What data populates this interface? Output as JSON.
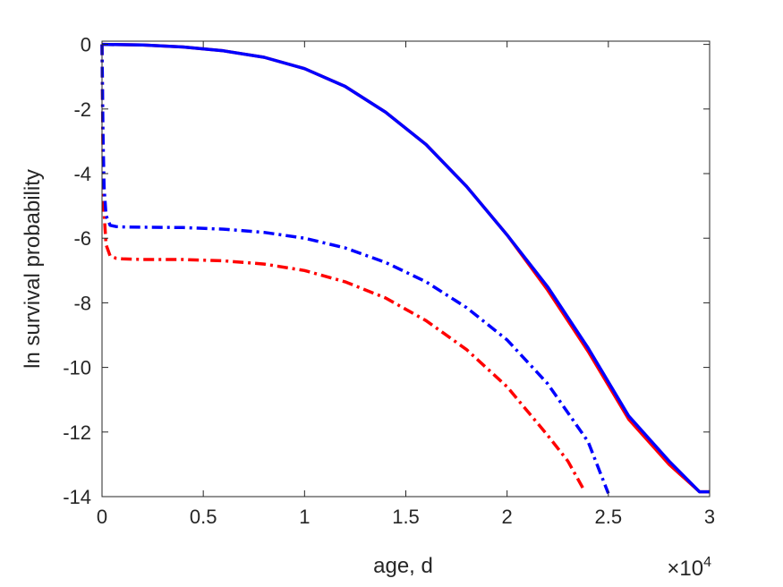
{
  "chart_data": {
    "type": "line",
    "title": "",
    "xlabel": "age, d",
    "ylabel": "ln survival probability",
    "x_exponent_label": {
      "base": "×10",
      "exponent": "4"
    },
    "xlim": [
      0,
      30000
    ],
    "ylim": [
      -14,
      0.1
    ],
    "xticks": [
      0,
      5000,
      10000,
      15000,
      20000,
      25000,
      30000
    ],
    "xtick_labels": [
      "0",
      "0.5",
      "1",
      "1.5",
      "2",
      "2.5",
      "3"
    ],
    "yticks": [
      0,
      -2,
      -4,
      -6,
      -8,
      -10,
      -12,
      -14
    ],
    "ytick_labels": [
      "0",
      "-2",
      "-4",
      "-6",
      "-8",
      "-10",
      "-12",
      "-14"
    ],
    "grid": false,
    "box": true,
    "series": [
      {
        "color": "#ff0000",
        "style": "solid",
        "x": [
          0,
          2000,
          4000,
          6000,
          8000,
          10000,
          12000,
          14000,
          16000,
          18000,
          20000,
          22000,
          24000,
          26000,
          28000,
          29500,
          30000
        ],
        "y": [
          0,
          -0.02,
          -0.08,
          -0.2,
          -0.4,
          -0.75,
          -1.3,
          -2.1,
          -3.1,
          -4.4,
          -5.9,
          -7.6,
          -9.5,
          -11.6,
          -13.0,
          -13.85,
          -13.85
        ]
      },
      {
        "color": "#0000ff",
        "style": "solid",
        "x": [
          0,
          2000,
          4000,
          6000,
          8000,
          10000,
          12000,
          14000,
          16000,
          18000,
          20000,
          22000,
          24000,
          26000,
          28000,
          29500,
          30000
        ],
        "y": [
          0,
          -0.02,
          -0.08,
          -0.2,
          -0.4,
          -0.75,
          -1.3,
          -2.1,
          -3.1,
          -4.4,
          -5.9,
          -7.5,
          -9.4,
          -11.5,
          -12.9,
          -13.85,
          -13.85
        ]
      },
      {
        "color": "#ff0000",
        "style": "dashdot",
        "x": [
          0,
          50,
          100,
          200,
          400,
          700,
          1000,
          2000,
          4000,
          6000,
          8000,
          10000,
          12000,
          14000,
          16000,
          18000,
          20000,
          22000,
          23000,
          23800
        ],
        "y": [
          0,
          -3.5,
          -5.2,
          -6.2,
          -6.55,
          -6.62,
          -6.64,
          -6.66,
          -6.66,
          -6.7,
          -6.8,
          -7.0,
          -7.35,
          -7.85,
          -8.55,
          -9.45,
          -10.6,
          -12.1,
          -12.9,
          -13.8
        ]
      },
      {
        "color": "#0000ff",
        "style": "dashdot",
        "x": [
          0,
          50,
          100,
          200,
          400,
          700,
          1000,
          2000,
          4000,
          6000,
          8000,
          10000,
          12000,
          14000,
          16000,
          18000,
          20000,
          22000,
          24000,
          25000
        ],
        "y": [
          0,
          -2.8,
          -4.4,
          -5.3,
          -5.6,
          -5.64,
          -5.65,
          -5.66,
          -5.67,
          -5.72,
          -5.82,
          -6.0,
          -6.3,
          -6.75,
          -7.35,
          -8.15,
          -9.15,
          -10.5,
          -12.3,
          -13.9
        ]
      }
    ]
  }
}
